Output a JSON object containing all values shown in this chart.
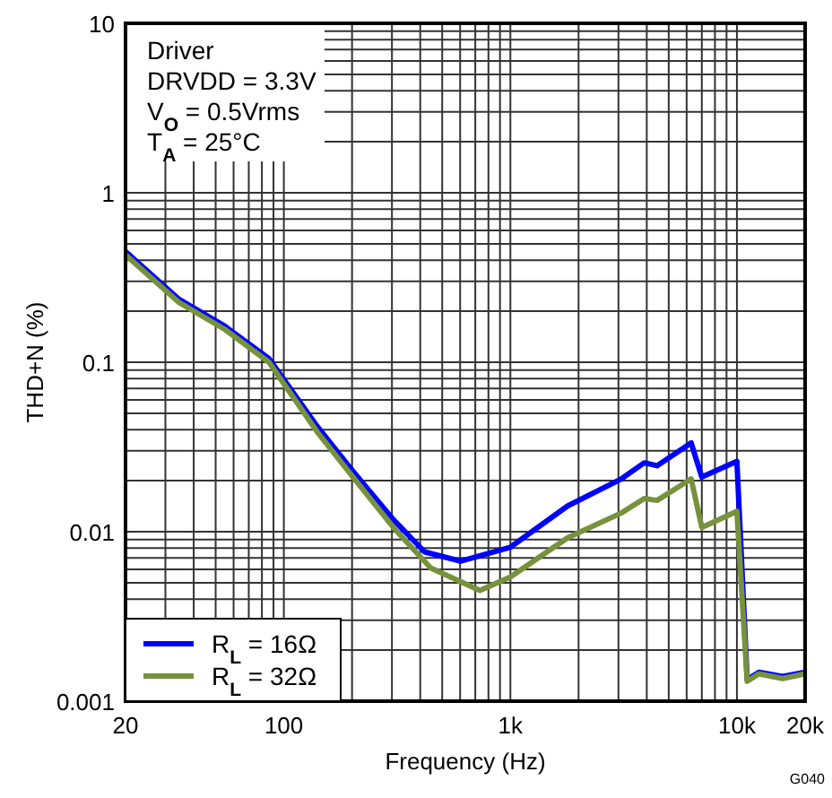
{
  "chart_data": {
    "type": "line",
    "xlabel": "Frequency (Hz)",
    "ylabel": "THD+N (%)",
    "annotations": [
      "Driver",
      "DRVDD = 3.3V",
      "V$_{O}$ = 0.5Vrms",
      "T$_{A}$ = 25°C",
      "G040"
    ],
    "log": "xy",
    "grid": true,
    "legend": "bottom left",
    "line_style": "solid",
    "xlim": [
      20,
      20000
    ],
    "xticks": [
      20,
      100,
      {
        "value": 1000,
        "label": "1k"
      },
      {
        "value": 10000,
        "label": "10k"
      },
      {
        "value": 20000,
        "label": "20k"
      }
    ],
    "ylim": [
      0.001,
      10
    ],
    "yticks": [
      0.001,
      0.01,
      0.1,
      1,
      10
    ],
    "series": [
      {
        "name": "R$_{L}$ = 16Ω",
        "color": "#0000ff",
        "x": [
          20,
          34.5,
          55,
          86,
          140,
          202,
          306,
          418,
          602,
          1000,
          1790,
          3090,
          3900,
          4440,
          6280,
          7000,
          10000,
          11100,
          12500,
          15900,
          20000
        ],
        "values": [
          0.45,
          0.235,
          0.163,
          0.105,
          0.042,
          0.0227,
          0.0117,
          0.0076,
          0.0067,
          0.0081,
          0.0142,
          0.0205,
          0.0255,
          0.0245,
          0.0334,
          0.021,
          0.026,
          0.00134,
          0.00148,
          0.0014,
          0.00148
        ]
      },
      {
        "name": "R$_{L}$ = 32Ω",
        "color": "#76923c",
        "x": [
          20,
          34.5,
          55,
          86,
          140,
          202,
          306,
          445,
          734,
          1000,
          1790,
          3090,
          3900,
          4440,
          6280,
          7000,
          10000,
          11100,
          12500,
          15900,
          20000
        ],
        "values": [
          0.43,
          0.225,
          0.156,
          0.1,
          0.039,
          0.021,
          0.0105,
          0.0061,
          0.0045,
          0.0054,
          0.0092,
          0.0129,
          0.0157,
          0.0153,
          0.0205,
          0.0106,
          0.0132,
          0.00131,
          0.00145,
          0.00136,
          0.00145
        ]
      }
    ]
  }
}
